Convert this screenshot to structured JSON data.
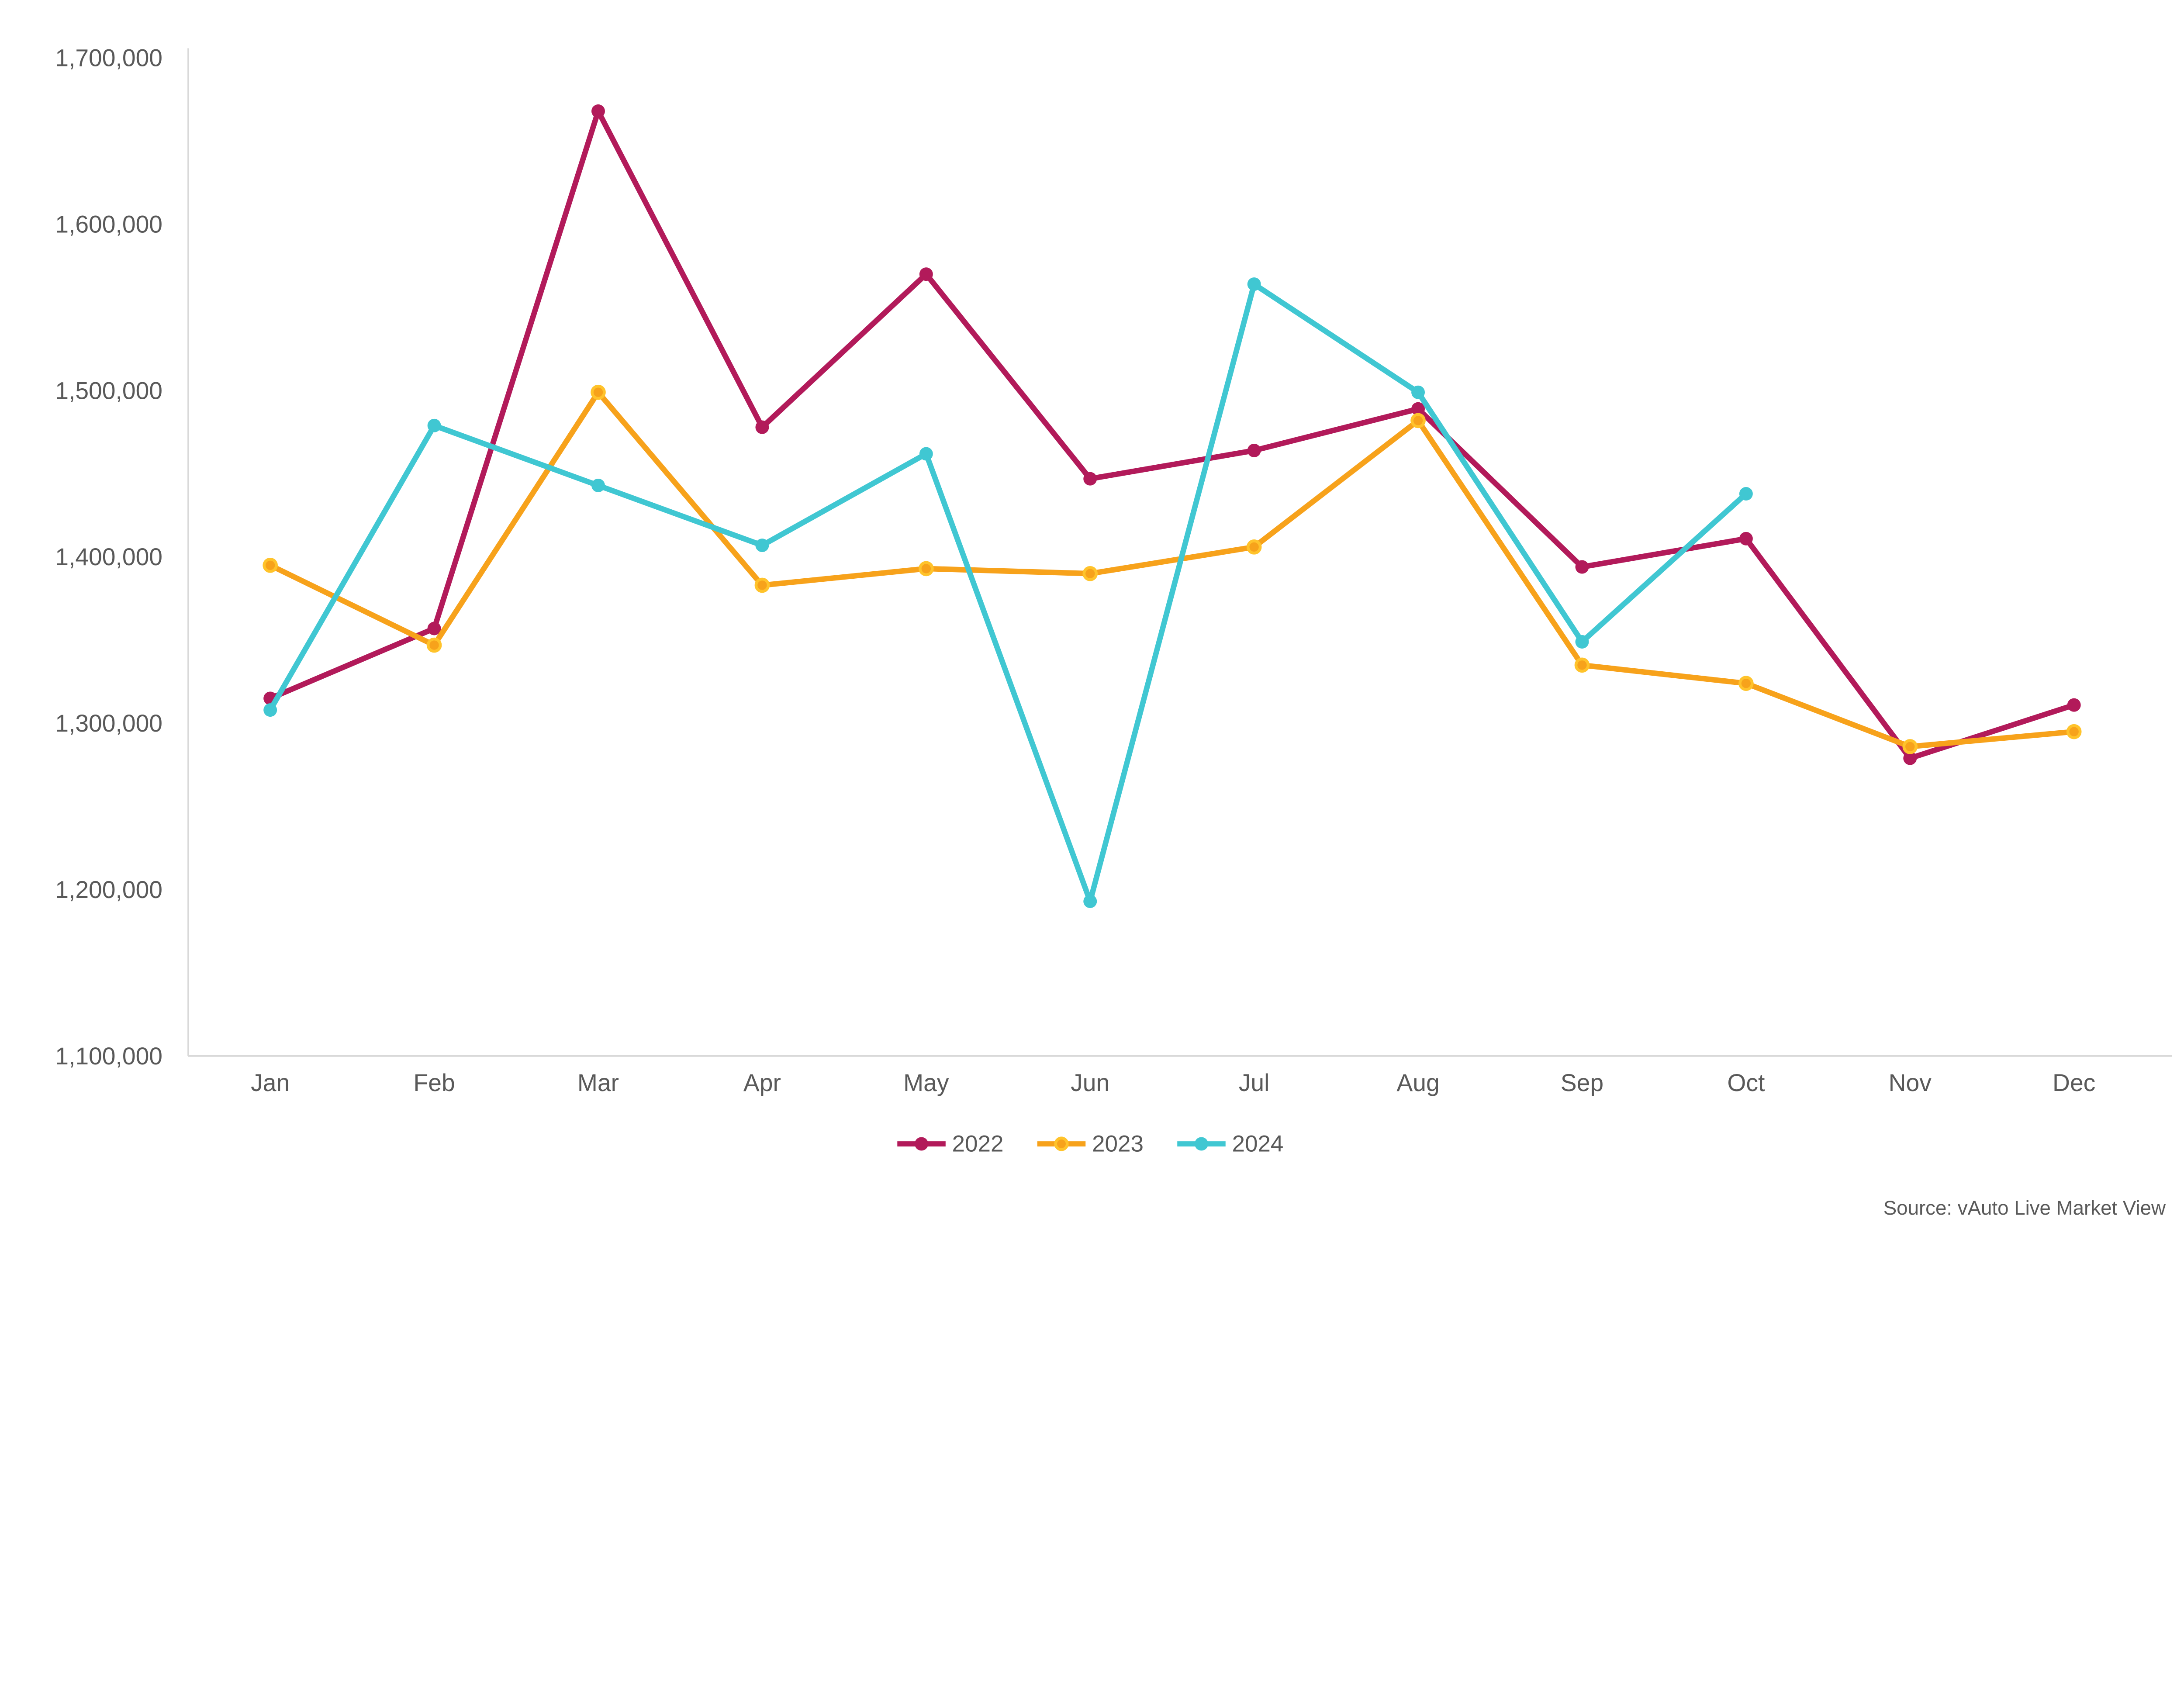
{
  "chart_data": {
    "type": "line",
    "title": "",
    "categories": [
      "Jan",
      "Feb",
      "Mar",
      "Apr",
      "May",
      "Jun",
      "Jul",
      "Aug",
      "Sep",
      "Oct",
      "Nov",
      "Dec"
    ],
    "y_axis": {
      "min": 1100000,
      "max": 1700000,
      "step": 100000,
      "tick_labels": [
        "1,100,000",
        "1,200,000",
        "1,300,000",
        "1,400,000",
        "1,500,000",
        "1,600,000",
        "1,700,000"
      ]
    },
    "grid": false,
    "legend_position": "bottom",
    "series": [
      {
        "name": "2022",
        "color": "#B21A5A",
        "marker": "solid",
        "values": [
          1315000,
          1357000,
          1668000,
          1478000,
          1570000,
          1447000,
          1464000,
          1489000,
          1394000,
          1411000,
          1279000,
          1311000
        ]
      },
      {
        "name": "2023",
        "color": "#F7A21B",
        "marker": "ring",
        "marker_ring_color": "#FFC32B",
        "values": [
          1395000,
          1347000,
          1499000,
          1383000,
          1393000,
          1390000,
          1406000,
          1482000,
          1335000,
          1324000,
          1286000,
          1295000
        ]
      },
      {
        "name": "2024",
        "color": "#40C7D2",
        "marker": "solid",
        "values": [
          1308000,
          1479000,
          1443000,
          1407000,
          1462000,
          1193000,
          1564000,
          1499000,
          1349000,
          1438000,
          null,
          null
        ]
      }
    ]
  },
  "source_note": "Source: vAuto Live Market View",
  "colors": {
    "axis_line": "#D9D9D9",
    "tick_text": "#595959",
    "source_text": "#595959"
  }
}
